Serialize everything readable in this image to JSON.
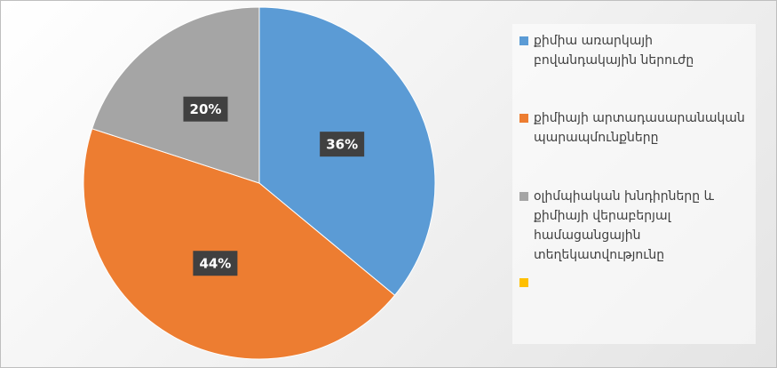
{
  "chart_data": {
    "type": "pie",
    "categories": [
      "քիմիա առարկայի բովանդակային ներուժը",
      "քիմիայի արտադասարանական պարապմունքները",
      "օլիմպիական խնդիրները և քիմիայի վերաբերյալ համացանցային տեղեկատվությունը",
      null
    ],
    "values": [
      36,
      44,
      20,
      null
    ],
    "value_labels": [
      "36%",
      "44%",
      "20%",
      null
    ],
    "colors": [
      "#5b9bd5",
      "#ed7d31",
      "#a5a5a5",
      "#ffc000"
    ]
  }
}
